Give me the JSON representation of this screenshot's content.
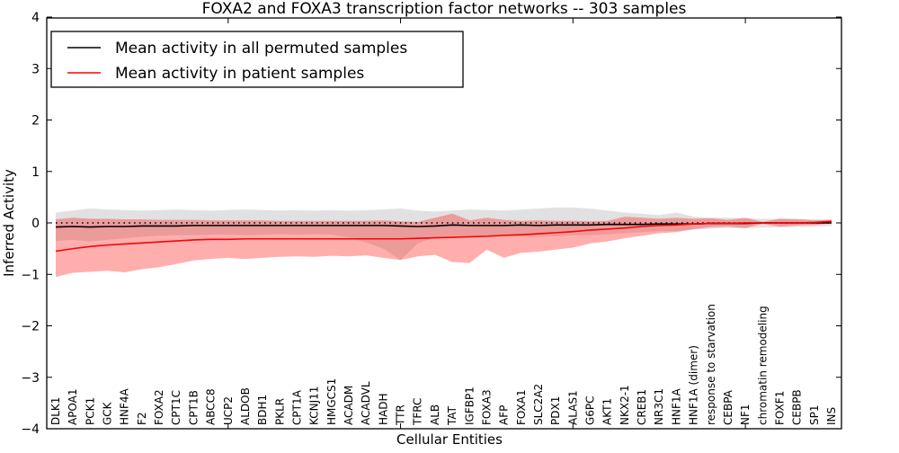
{
  "chart_data": {
    "type": "line",
    "title": "FOXA2 and FOXA3 transcription factor networks -- 303 samples",
    "xlabel": "Cellular Entities",
    "ylabel": "Inferred Activity",
    "ylim": [
      -4,
      4
    ],
    "yticks": [
      4,
      3,
      2,
      1,
      0,
      -1,
      -2,
      -3,
      -4
    ],
    "yticklabels": [
      "4",
      "3",
      "2",
      "1",
      "0",
      "−1",
      "−2",
      "−3",
      "−4"
    ],
    "categories": [
      "DLK1",
      "APOA1",
      "PCK1",
      "GCK",
      "HNF4A",
      "F2",
      "FOXA2",
      "CPT1C",
      "CPT1B",
      "ABCC8",
      "UCP2",
      "ALDOB",
      "BDH1",
      "PKLR",
      "CPT1A",
      "KCNJ11",
      "HMGCS1",
      "ACADM",
      "ACADVL",
      "HADH",
      "TTR",
      "TFRC",
      "ALB",
      "TAT",
      "IGFBP1",
      "FOXA3",
      "AFP",
      "FOXA1",
      "SLC2A2",
      "PDX1",
      "ALAS1",
      "G6PC",
      "AKT1",
      "NKX2-1",
      "CREB1",
      "NR3C1",
      "HNF1A",
      "HNF1A (dimer)",
      "response to starvation",
      "CEBPA",
      "NF1",
      "chromatin remodeling",
      "FOXF1",
      "CEBPB",
      "SP1",
      "INS"
    ],
    "reference_line": {
      "y": 0,
      "style": "dotted",
      "color": "#000000"
    },
    "series": [
      {
        "name": "Mean activity in all permuted samples",
        "color": "#000000",
        "band_color": "#b0b0b0",
        "values": [
          -0.08,
          -0.07,
          -0.08,
          -0.07,
          -0.07,
          -0.06,
          -0.06,
          -0.06,
          -0.05,
          -0.05,
          -0.05,
          -0.05,
          -0.05,
          -0.05,
          -0.05,
          -0.05,
          -0.05,
          -0.05,
          -0.05,
          -0.05,
          -0.06,
          -0.07,
          -0.06,
          -0.04,
          -0.05,
          -0.05,
          -0.05,
          -0.04,
          -0.05,
          -0.04,
          -0.04,
          -0.04,
          -0.03,
          -0.03,
          -0.03,
          -0.02,
          -0.02,
          -0.02,
          -0.01,
          -0.01,
          -0.01,
          0.0,
          0.0,
          0.0,
          0.0,
          0.0
        ],
        "band_upper": [
          0.2,
          0.24,
          0.28,
          0.26,
          0.25,
          0.24,
          0.25,
          0.26,
          0.25,
          0.24,
          0.25,
          0.26,
          0.25,
          0.24,
          0.25,
          0.24,
          0.25,
          0.24,
          0.25,
          0.26,
          0.28,
          0.24,
          0.22,
          0.24,
          0.26,
          0.25,
          0.24,
          0.26,
          0.28,
          0.3,
          0.3,
          0.28,
          0.24,
          0.2,
          0.18,
          0.15,
          0.2,
          0.12,
          0.1,
          0.1,
          0.09,
          0.08,
          0.08,
          0.08,
          0.07,
          0.06
        ],
        "band_lower": [
          -0.35,
          -0.33,
          -0.36,
          -0.33,
          -0.3,
          -0.27,
          -0.25,
          -0.24,
          -0.24,
          -0.23,
          -0.23,
          -0.24,
          -0.23,
          -0.22,
          -0.23,
          -0.22,
          -0.23,
          -0.28,
          -0.38,
          -0.5,
          -0.72,
          -0.4,
          -0.28,
          -0.26,
          -0.27,
          -0.27,
          -0.26,
          -0.26,
          -0.27,
          -0.26,
          -0.24,
          -0.24,
          -0.22,
          -0.2,
          -0.18,
          -0.16,
          -0.16,
          -0.13,
          -0.11,
          -0.1,
          -0.1,
          -0.09,
          -0.09,
          -0.08,
          -0.07,
          -0.06
        ]
      },
      {
        "name": "Mean activity in patient samples",
        "color": "#ff0000",
        "band_color": "#ff2a2a",
        "values": [
          -0.55,
          -0.5,
          -0.46,
          -0.43,
          -0.41,
          -0.39,
          -0.37,
          -0.35,
          -0.33,
          -0.32,
          -0.32,
          -0.31,
          -0.31,
          -0.31,
          -0.31,
          -0.31,
          -0.31,
          -0.31,
          -0.31,
          -0.31,
          -0.31,
          -0.3,
          -0.29,
          -0.28,
          -0.27,
          -0.26,
          -0.24,
          -0.23,
          -0.21,
          -0.19,
          -0.17,
          -0.14,
          -0.12,
          -0.1,
          -0.07,
          -0.05,
          -0.04,
          -0.02,
          -0.01,
          -0.01,
          0.0,
          0.0,
          0.0,
          0.0,
          0.01,
          0.03
        ],
        "band_upper": [
          0.07,
          0.1,
          0.08,
          0.08,
          0.07,
          0.07,
          0.06,
          0.06,
          0.06,
          0.05,
          0.05,
          0.05,
          0.05,
          0.04,
          0.04,
          0.04,
          0.04,
          0.04,
          0.04,
          0.05,
          0.03,
          0.02,
          0.1,
          0.18,
          0.05,
          0.1,
          0.06,
          0.04,
          0.05,
          0.04,
          0.04,
          0.03,
          0.04,
          0.12,
          0.1,
          0.08,
          0.1,
          0.08,
          0.09,
          0.06,
          0.1,
          0.02,
          0.08,
          0.07,
          0.05,
          0.06
        ],
        "band_lower": [
          -1.05,
          -0.97,
          -0.95,
          -0.93,
          -0.96,
          -0.9,
          -0.86,
          -0.8,
          -0.73,
          -0.7,
          -0.68,
          -0.7,
          -0.68,
          -0.66,
          -0.65,
          -0.66,
          -0.64,
          -0.65,
          -0.63,
          -0.68,
          -0.72,
          -0.65,
          -0.62,
          -0.76,
          -0.78,
          -0.52,
          -0.68,
          -0.58,
          -0.56,
          -0.52,
          -0.48,
          -0.4,
          -0.36,
          -0.3,
          -0.25,
          -0.2,
          -0.18,
          -0.12,
          -0.08,
          -0.07,
          -0.1,
          -0.02,
          -0.07,
          -0.05,
          -0.04,
          -0.01
        ]
      }
    ],
    "layout": {
      "legend_position": "upper left",
      "grid": false,
      "x_major_tick_indices": [
        10,
        20,
        30,
        40
      ],
      "background": "#ffffff"
    }
  }
}
